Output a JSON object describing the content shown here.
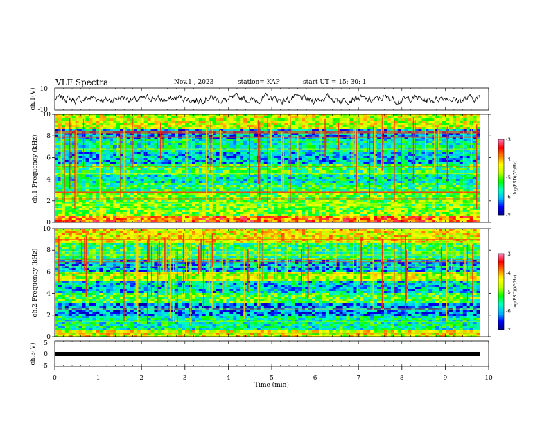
{
  "header": {
    "title": "VLF Spectra",
    "date": "Nov.1 , 2023",
    "station": "station= KAP",
    "start_ut": "start UT = 15: 30: 1"
  },
  "chart_data": [
    {
      "type": "line",
      "name": "ch1-waveform",
      "ylabel": "ch.1(V)",
      "ylim": [
        -10,
        10
      ],
      "yticks": [
        "10",
        "-10"
      ],
      "xlim": [
        0,
        10
      ],
      "description_level": "noise oscillating roughly between -6 and 6 V over 0-9.8 min"
    },
    {
      "type": "heatmap",
      "name": "ch1-spectrogram",
      "ylabel": "ch.1 Frequency (kHz)",
      "ylim": [
        0,
        10
      ],
      "yticks": [
        "0",
        "2",
        "4",
        "6",
        "8",
        "10"
      ],
      "xlim": [
        0,
        9.8
      ],
      "colorbar": {
        "label": "log(PSD)(V²/Hz)",
        "ticks": [
          "-3",
          "-4",
          "-5",
          "-6",
          "-7"
        ],
        "range": [
          -7,
          -3
        ]
      },
      "colormap": [
        "#00007f",
        "#0000ff",
        "#00bfff",
        "#00ffbf",
        "#00ff00",
        "#bfff00",
        "#ffff00",
        "#ff8000",
        "#ff0000",
        "#ff7fbf"
      ],
      "band_profile": [
        {
          "f0": 0,
          "f1": 0.5,
          "level": -3.8
        },
        {
          "f0": 0.5,
          "f1": 1.2,
          "level": -4.9
        },
        {
          "f0": 1.2,
          "f1": 2.6,
          "level": -5.0
        },
        {
          "f0": 2.6,
          "f1": 3.6,
          "level": -5.4
        },
        {
          "f0": 3.6,
          "f1": 4.4,
          "level": -5.7
        },
        {
          "f0": 4.4,
          "f1": 5.4,
          "level": -5.3
        },
        {
          "f0": 5.4,
          "f1": 6.6,
          "level": -6.0
        },
        {
          "f0": 6.6,
          "f1": 7.6,
          "level": -5.6
        },
        {
          "f0": 7.6,
          "f1": 8.6,
          "level": -6.1
        },
        {
          "f0": 8.6,
          "f1": 10,
          "level": -4.6
        }
      ]
    },
    {
      "type": "heatmap",
      "name": "ch2-spectrogram",
      "ylabel": "ch.2 Frequency (kHz)",
      "ylim": [
        0,
        10
      ],
      "yticks": [
        "0",
        "2",
        "4",
        "6",
        "8",
        "10"
      ],
      "xlim": [
        0,
        9.8
      ],
      "colorbar": {
        "label": "log(PSD)(V²/Hz)",
        "ticks": [
          "-3",
          "-4",
          "-5",
          "-6",
          "-7"
        ],
        "range": [
          -7,
          -3
        ]
      },
      "band_profile": [
        {
          "f0": 0,
          "f1": 0.6,
          "level": -4.5
        },
        {
          "f0": 0.6,
          "f1": 2.0,
          "level": -5.6
        },
        {
          "f0": 2.0,
          "f1": 3.0,
          "level": -6.2
        },
        {
          "f0": 3.0,
          "f1": 4.0,
          "level": -5.2
        },
        {
          "f0": 4.0,
          "f1": 5.2,
          "level": -5.9
        },
        {
          "f0": 5.2,
          "f1": 6.0,
          "level": -4.7
        },
        {
          "f0": 6.0,
          "f1": 7.2,
          "level": -6.0
        },
        {
          "f0": 7.2,
          "f1": 8.6,
          "level": -5.4
        },
        {
          "f0": 8.6,
          "f1": 10,
          "level": -4.4
        }
      ]
    },
    {
      "type": "line",
      "name": "ch3-waveform",
      "ylabel": "ch.3(V)",
      "ylim": [
        -5,
        5
      ],
      "yticks": [
        "5",
        "0",
        "-5"
      ],
      "xlim": [
        0,
        10
      ],
      "constant_value": 0,
      "xlabel": "Time (min)",
      "xticks": [
        "0",
        "1",
        "2",
        "3",
        "4",
        "5",
        "6",
        "7",
        "8",
        "9",
        "10"
      ]
    }
  ]
}
